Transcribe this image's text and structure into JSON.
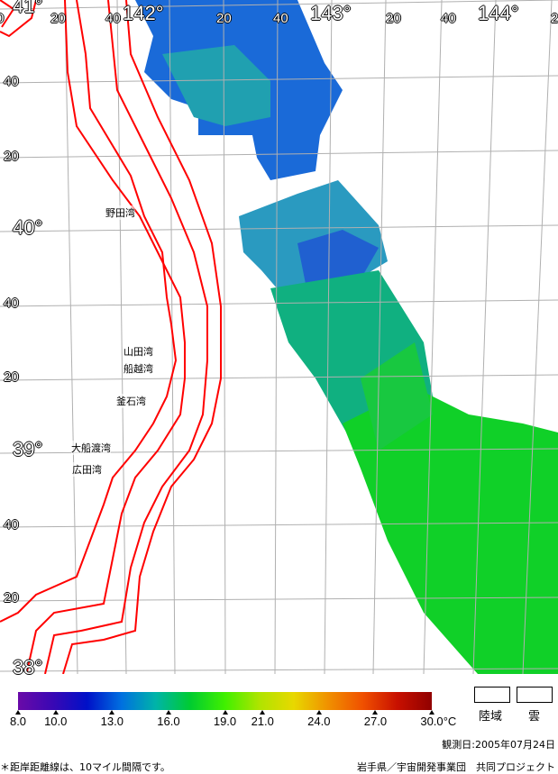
{
  "map": {
    "latitude_labels": [
      "41°",
      "40",
      "20",
      "40°",
      "40",
      "20",
      "39°",
      "40",
      "20",
      "38°"
    ],
    "longitude_labels": [
      "0",
      "20",
      "40",
      "142°",
      "20",
      "40",
      "143°",
      "20",
      "40",
      "144°",
      "2"
    ],
    "places": [
      "野田湾",
      "山田湾",
      "船越湾",
      "釜石湾",
      "大船渡湾",
      "広田湾"
    ],
    "coast_line_color": "#ff0000",
    "grid_color": "#b0b0b0"
  },
  "legend": {
    "ticks": [
      "8.0",
      "10.0",
      "13.0",
      "16.0",
      "19.0",
      "21.0",
      "24.0",
      "27.0",
      "30.0"
    ],
    "unit": "°C",
    "land_label": "陸域",
    "cloud_label": "雲",
    "colors": [
      "#6a0aa8",
      "#3a08b4",
      "#0010c8",
      "#0070e0",
      "#00b4a8",
      "#00cc30",
      "#40f000",
      "#b0e400",
      "#e8d800",
      "#f09000",
      "#f05000",
      "#c81000",
      "#900000"
    ]
  },
  "footer": {
    "date": "観測日:2005年07月24日",
    "note": "＊距岸距離線は、10マイル間隔です。",
    "credit": "岩手県／宇宙開発事業団　共同プロジェクト"
  }
}
